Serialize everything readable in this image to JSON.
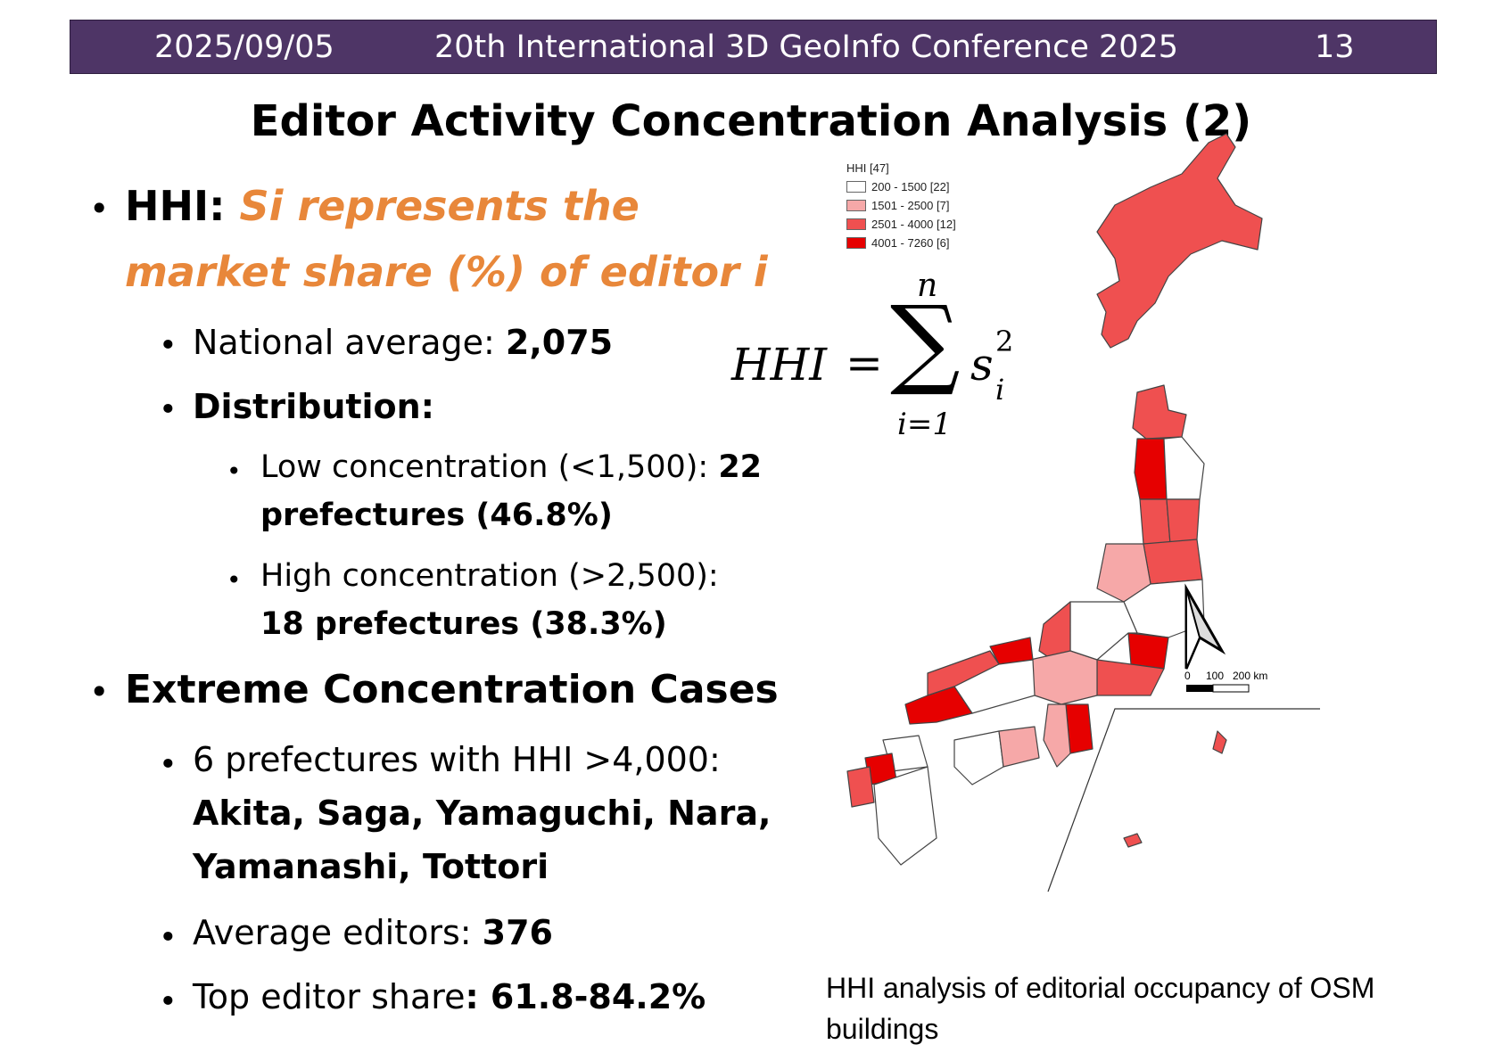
{
  "header": {
    "date": "2025/09/05",
    "conference": "20th International 3D GeoInfo Conference 2025",
    "page": "13"
  },
  "title": "Editor Activity Concentration Analysis (2)",
  "bullets": {
    "hhi_label": "HHI: ",
    "hhi_desc_line1": "Si represents the",
    "hhi_desc_line2": "market share (%) of editor i",
    "national_average_label": "National average: ",
    "national_average_value": "2,075",
    "distribution_label": "Distribution:",
    "low_label": "Low concentration (<1,500): ",
    "low_value_a": "22",
    "low_value_b": "prefectures (46.8%)",
    "high_label": "High concentration (>2,500):",
    "high_value": "18 prefectures (38.3%)",
    "extreme_label": "Extreme Concentration Cases",
    "six_label": "6 prefectures with HHI >4,000:",
    "six_names_line1": "Akita, Saga, Yamaguchi, Nara,",
    "six_names_line2": "Yamanashi, Tottori",
    "avg_editors_label": "Average editors: ",
    "avg_editors_value": "376",
    "top_share_label": "Top editor share",
    "top_share_value": ": 61.8-84.2%"
  },
  "formula": {
    "lhs": "HHI",
    "eq": "=",
    "sigma": "∑",
    "upper": "n",
    "lower": "i=1",
    "term": "s",
    "sub": "i",
    "sup": "2"
  },
  "legend": {
    "title": "HHI [47]",
    "items": [
      {
        "label": "200 - 1500 [22]",
        "color": "#ffffff"
      },
      {
        "label": "1501 - 2500 [7]",
        "color": "#f6a8a8"
      },
      {
        "label": "2501 - 4000 [12]",
        "color": "#ef5050"
      },
      {
        "label": "4001 - 7260 [6]",
        "color": "#e60000"
      }
    ]
  },
  "scale": {
    "t0": "0",
    "t1": "100",
    "t2": "200 km"
  },
  "caption": "HHI analysis of editorial occupancy of OSM buildings"
}
